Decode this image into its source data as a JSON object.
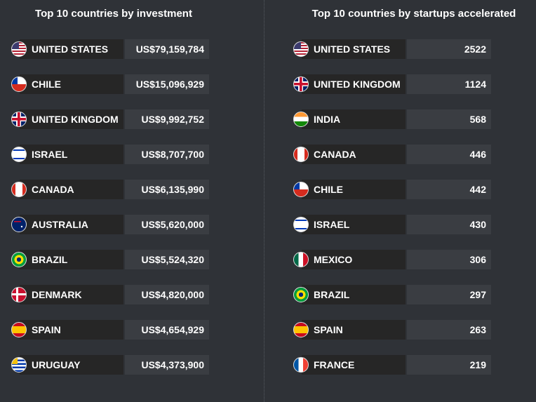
{
  "tables": [
    {
      "title": "Top 10 countries by investment",
      "rows": [
        [
          "UNITED STATES",
          "US$79,159,784"
        ],
        [
          "CHILE",
          "US$15,096,929"
        ],
        [
          "UNITED KINGDOM",
          "US$9,992,752"
        ],
        [
          "ISRAEL",
          "US$8,707,700"
        ],
        [
          "CANADA",
          "US$6,135,990"
        ],
        [
          "AUSTRALIA",
          "US$5,620,000"
        ],
        [
          "BRAZIL",
          "US$5,524,320"
        ],
        [
          "DENMARK",
          "US$4,820,000"
        ],
        [
          "SPAIN",
          "US$4,654,929"
        ],
        [
          "URUGUAY",
          "US$4,373,900"
        ]
      ]
    },
    {
      "title": "Top 10 countries by startups accelerated",
      "rows": [
        [
          "UNITED STATES",
          "2522"
        ],
        [
          "UNITED KINGDOM",
          "1124"
        ],
        [
          "INDIA",
          "568"
        ],
        [
          "CANADA",
          "446"
        ],
        [
          "CHILE",
          "442"
        ],
        [
          "ISRAEL",
          "430"
        ],
        [
          "MEXICO",
          "306"
        ],
        [
          "BRAZIL",
          "297"
        ],
        [
          "SPAIN",
          "263"
        ],
        [
          "FRANCE",
          "219"
        ]
      ]
    }
  ]
}
